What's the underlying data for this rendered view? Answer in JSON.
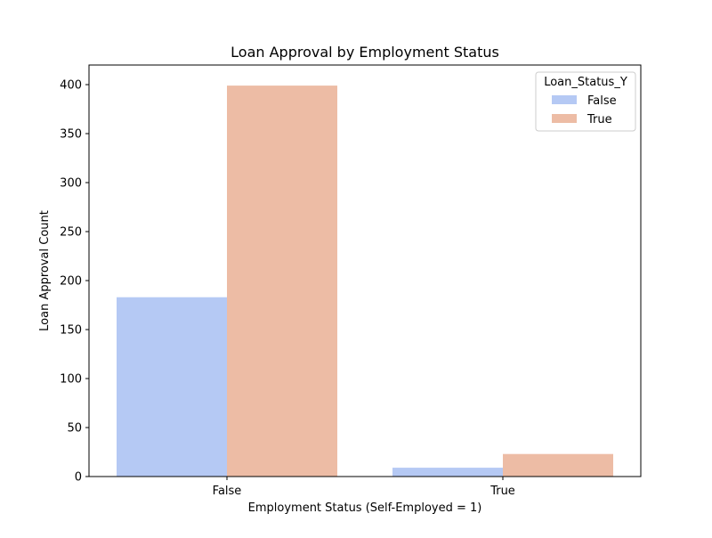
{
  "chart_data": {
    "type": "bar",
    "title": "Loan Approval by Employment Status",
    "xlabel": "Employment Status (Self-Employed = 1)",
    "ylabel": "Loan Approval Count",
    "categories": [
      "False",
      "True"
    ],
    "series": [
      {
        "name": "False",
        "values": [
          183,
          9
        ],
        "color": "#b5c9f4"
      },
      {
        "name": "True",
        "values": [
          399,
          23
        ],
        "color": "#edbca5"
      }
    ],
    "ylim": [
      0,
      420
    ],
    "yticks": [
      0,
      50,
      100,
      150,
      200,
      250,
      300,
      350,
      400
    ],
    "grid": false,
    "legend": {
      "title": "Loan_Status_Y",
      "placement": "top-right"
    }
  }
}
